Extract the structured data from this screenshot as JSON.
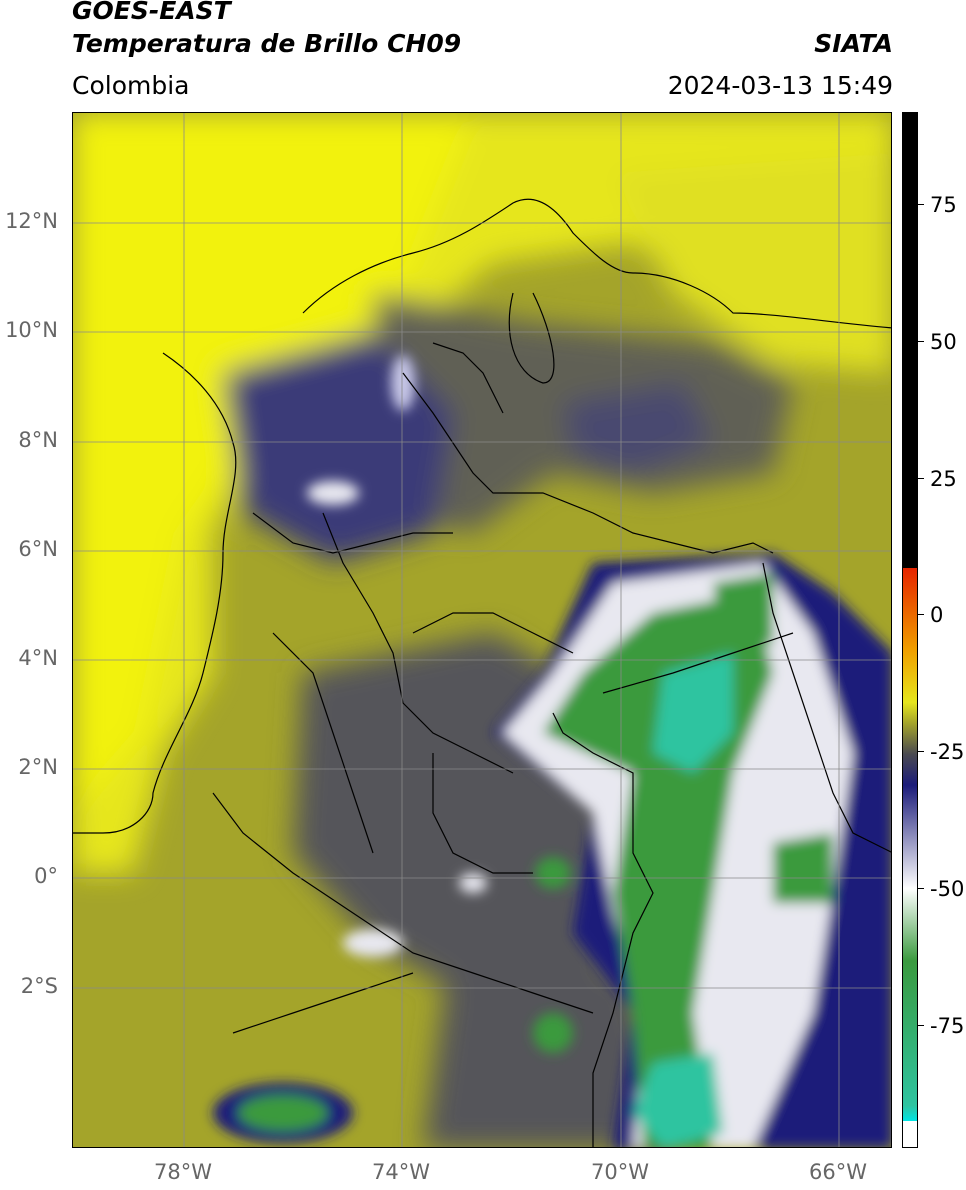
{
  "header": {
    "satellite": "GOES-EAST",
    "product": "Temperatura de Brillo CH09",
    "brand": "SIATA",
    "region": "Colombia",
    "datetime": "2024-03-13 15:49"
  },
  "map": {
    "lat_labels": [
      "12°N",
      "10°N",
      "8°N",
      "6°N",
      "4°N",
      "2°N",
      "0°",
      "2°S"
    ],
    "lon_labels": [
      "78°W",
      "74°W",
      "70°W",
      "66°W"
    ],
    "colors": {
      "yellow": "#e6e61e",
      "olive": "#8f8f3a",
      "gray": "#4a4a50",
      "navy": "#1c1c7a",
      "white": "#f4f4f4",
      "green": "#3a9a3e",
      "teal": "#2ec4a0"
    }
  },
  "colorbar": {
    "ticks": [
      "75",
      "50",
      "25",
      "0",
      "-25",
      "-50",
      "-75"
    ],
    "colors": [
      "#000000",
      "#e62400",
      "#f0a000",
      "#e6e61e",
      "#a4a42a",
      "#4a4a50",
      "#1c1c7a",
      "#ffffff",
      "#3a9a3e",
      "#2ec4a0",
      "#00e5e5"
    ]
  }
}
